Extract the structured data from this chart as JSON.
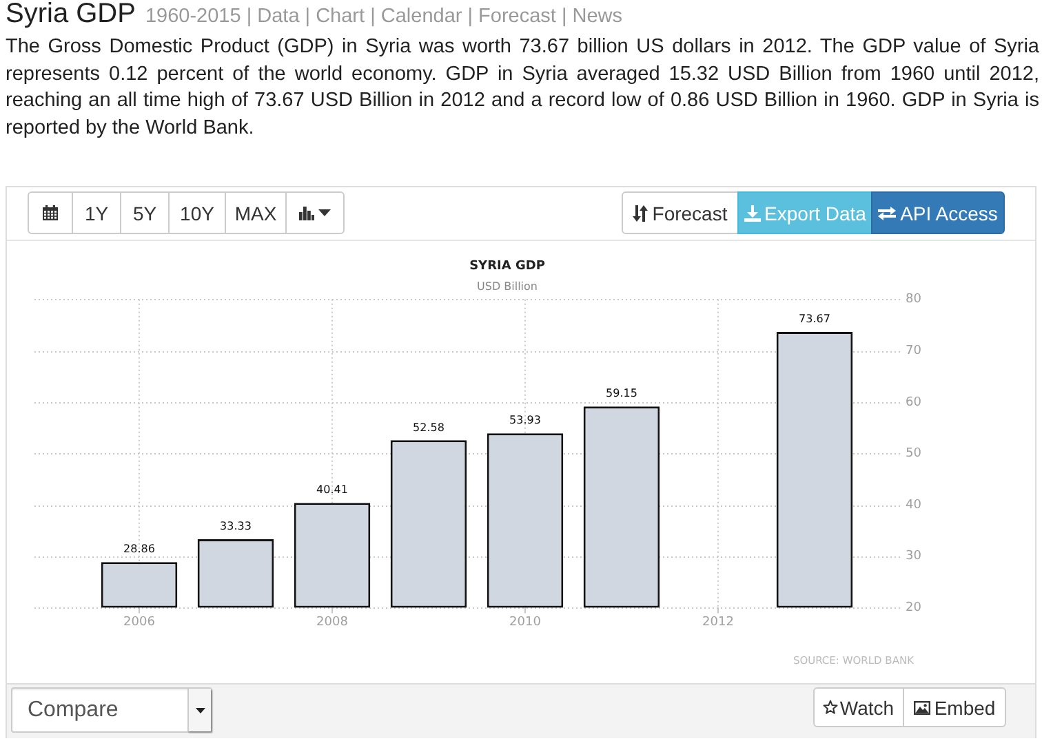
{
  "chart_data": {
    "type": "bar",
    "title": "SYRIA GDP",
    "subtitle": "USD Billion",
    "categories": [
      "2006",
      null,
      "2008",
      null,
      "2010",
      null,
      "2012",
      null
    ],
    "values": [
      28.86,
      33.33,
      40.41,
      52.58,
      53.93,
      59.15,
      null,
      73.67
    ],
    "color": "#d0d7e0",
    "ylim": [
      20,
      80
    ],
    "yticks": [
      20,
      30,
      40,
      50,
      60,
      70,
      80
    ],
    "grid": true,
    "data_labels": true,
    "annotations": [
      "Syria GDP",
      "1960-2015 | Data | Chart | Calendar | Forecast | News",
      "The Gross Domestic Product (GDP) in Syria was worth 73.67 billion US dollars in 2012. The GDP value of Syria represents 0.12 percent of the world economy. GDP in Syria averaged 15.32 USD Billion from 1960 until 2012, reaching an all time high of 73.67 USD Billion in 2012 and a record low of 0.86 USD Billion in 1960. GDP in Syria is reported by the World Bank.",
      "SOURCE: WORLD BANK",
      "1Y",
      "5Y",
      "10Y",
      "MAX",
      "Forecast",
      "Export Data",
      "API Access",
      "Compare",
      "Watch",
      "Embed"
    ]
  }
}
